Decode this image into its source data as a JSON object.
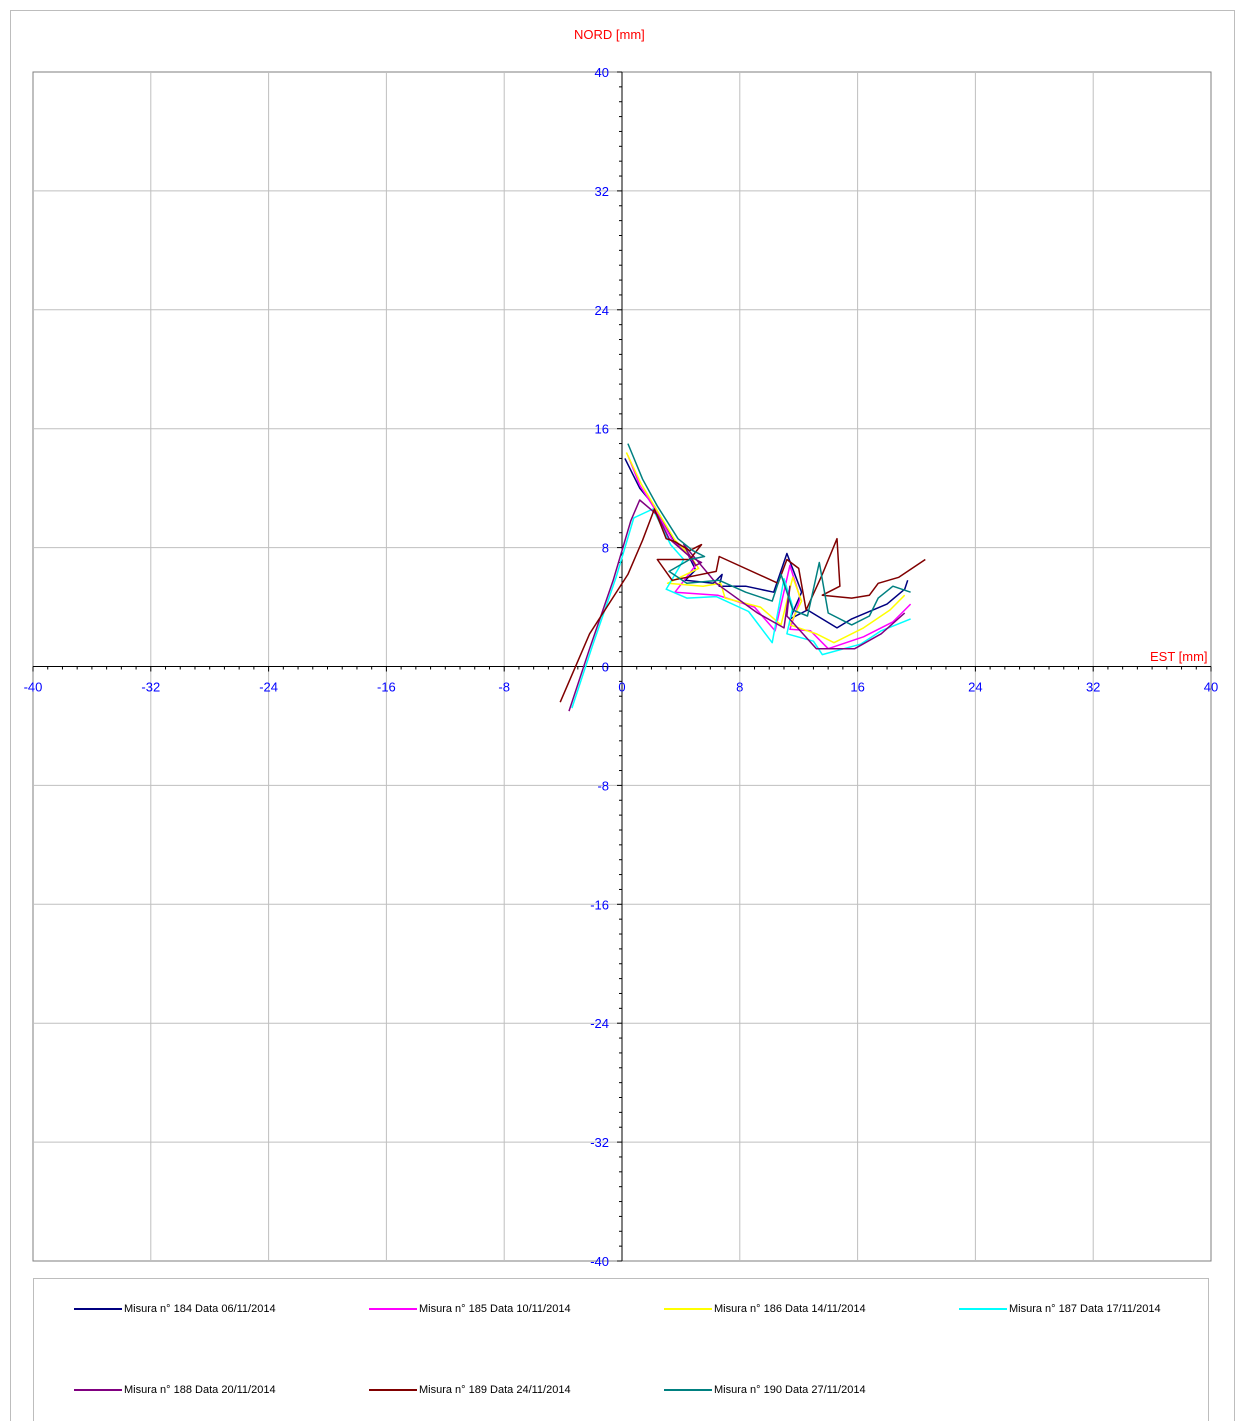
{
  "chart_data": {
    "type": "line",
    "xlabel": "EST [mm]",
    "ylabel": "NORD  [mm]",
    "xlim": [
      -40,
      40
    ],
    "ylim": [
      -40,
      40
    ],
    "x_ticks": [
      -40,
      -32,
      -24,
      -16,
      -8,
      0,
      8,
      16,
      24,
      32,
      40
    ],
    "y_ticks": [
      40,
      32,
      24,
      16,
      8,
      0,
      -8,
      -16,
      -24,
      -32,
      -40
    ],
    "grid": true,
    "legend_position": "bottom",
    "colors": {
      "tick_label": "#0000ff",
      "axis_title": "#ff0000",
      "grid": "#bfbfbf"
    },
    "series": [
      {
        "name": "Misura n° 184 Data 06/11/2014",
        "color": "#000080",
        "points": [
          [
            0.2,
            14
          ],
          [
            1.2,
            12
          ],
          [
            2.2,
            10.8
          ],
          [
            3.5,
            8.5
          ],
          [
            4.5,
            7.5
          ],
          [
            5,
            6.5
          ],
          [
            4.3,
            5.8
          ],
          [
            6.2,
            5.6
          ],
          [
            6.8,
            6.2
          ],
          [
            6.6,
            5.4
          ],
          [
            8.4,
            5.4
          ],
          [
            10.3,
            5
          ],
          [
            11.2,
            7.6
          ],
          [
            12.2,
            5
          ],
          [
            11.4,
            3.2
          ],
          [
            12.6,
            3.8
          ],
          [
            14.6,
            2.6
          ],
          [
            15.6,
            3.2
          ],
          [
            18,
            4.2
          ],
          [
            19.2,
            5.2
          ],
          [
            19.4,
            5.8
          ]
        ]
      },
      {
        "name": "Misura n° 185 Data 10/11/2014",
        "color": "#ff00ff",
        "points": [
          [
            0.4,
            14.2
          ],
          [
            1.2,
            12.2
          ],
          [
            2.1,
            10.8
          ],
          [
            3.5,
            8.4
          ],
          [
            4.5,
            7.5
          ],
          [
            5,
            6.8
          ],
          [
            3.6,
            5
          ],
          [
            6.5,
            4.8
          ],
          [
            9,
            4
          ],
          [
            10.4,
            2.4
          ],
          [
            11.4,
            6.8
          ],
          [
            12.1,
            4.6
          ],
          [
            11.4,
            2.5
          ],
          [
            12.8,
            2.4
          ],
          [
            14,
            1.2
          ],
          [
            16.4,
            2
          ],
          [
            18.4,
            3
          ],
          [
            19,
            3.6
          ],
          [
            19.6,
            4.2
          ]
        ]
      },
      {
        "name": "Misura n° 186 Data 14/11/2014",
        "color": "#ffff00",
        "points": [
          [
            0.3,
            14.4
          ],
          [
            1.3,
            12.3
          ],
          [
            2.2,
            10.8
          ],
          [
            3.6,
            8.5
          ],
          [
            4.6,
            7.5
          ],
          [
            5.2,
            6.6
          ],
          [
            3.1,
            5.6
          ],
          [
            5.5,
            5.4
          ],
          [
            6.7,
            5.6
          ],
          [
            7,
            4.6
          ],
          [
            9.4,
            4
          ],
          [
            10.8,
            2.8
          ],
          [
            11.6,
            6
          ],
          [
            12.2,
            4.4
          ],
          [
            11.4,
            2.8
          ],
          [
            13.2,
            2.2
          ],
          [
            14.4,
            1.6
          ],
          [
            16.4,
            2.6
          ],
          [
            18.2,
            3.8
          ],
          [
            19.2,
            4.8
          ]
        ]
      },
      {
        "name": "Misura n° 187 Data 17/11/2014",
        "color": "#00ffff",
        "points": [
          [
            -3.4,
            -2.8
          ],
          [
            -2,
            1.4
          ],
          [
            -0.4,
            6
          ],
          [
            0.8,
            10
          ],
          [
            2.1,
            10.6
          ],
          [
            3.3,
            8.2
          ],
          [
            4.2,
            7.2
          ],
          [
            3,
            5.2
          ],
          [
            4.4,
            4.6
          ],
          [
            6.4,
            4.7
          ],
          [
            8.6,
            3.7
          ],
          [
            10.2,
            1.6
          ],
          [
            11,
            5.9
          ],
          [
            11.6,
            4
          ],
          [
            11.2,
            2.2
          ],
          [
            13,
            1.7
          ],
          [
            13.6,
            0.8
          ],
          [
            16.2,
            1.5
          ],
          [
            17.6,
            2.4
          ],
          [
            19.6,
            3.2
          ]
        ]
      },
      {
        "name": "Misura n° 188 Data 20/11/2014",
        "color": "#800080",
        "points": [
          [
            -3.6,
            -3
          ],
          [
            -2.2,
            1.2
          ],
          [
            -0.6,
            5.8
          ],
          [
            0.6,
            9.8
          ],
          [
            1.2,
            11.2
          ],
          [
            2.4,
            10.2
          ],
          [
            3.2,
            8.6
          ],
          [
            4.6,
            7.4
          ],
          [
            5.4,
            7
          ],
          [
            5,
            6.8
          ],
          [
            4.4,
            7.8
          ],
          [
            4.2,
            8.2
          ],
          [
            6.4,
            5.6
          ],
          [
            9.2,
            3.6
          ],
          [
            11,
            2.6
          ],
          [
            11.4,
            5.4
          ],
          [
            11.2,
            3.4
          ],
          [
            13.2,
            1.2
          ],
          [
            15.8,
            1.2
          ],
          [
            17.6,
            2.2
          ],
          [
            19.2,
            3.6
          ]
        ]
      },
      {
        "name": "Misura n° 189 Data 24/11/2014",
        "color": "#800000",
        "points": [
          [
            -4.2,
            -2.4
          ],
          [
            -2.2,
            2.2
          ],
          [
            0.4,
            6.2
          ],
          [
            1.4,
            8.5
          ],
          [
            2.2,
            10.6
          ],
          [
            3,
            8.6
          ],
          [
            3.6,
            8.4
          ],
          [
            4.6,
            7.8
          ],
          [
            5.4,
            8.2
          ],
          [
            4.6,
            7.2
          ],
          [
            2.4,
            7.2
          ],
          [
            3.4,
            5.8
          ],
          [
            6.4,
            6.4
          ],
          [
            6.6,
            7.4
          ],
          [
            10.6,
            5.6
          ],
          [
            11.2,
            7.2
          ],
          [
            12,
            6.6
          ],
          [
            12.5,
            3.8
          ],
          [
            13.6,
            6.2
          ],
          [
            14.6,
            8.6
          ],
          [
            14.8,
            5.4
          ],
          [
            13.6,
            4.8
          ],
          [
            15.6,
            4.6
          ],
          [
            16.8,
            4.8
          ],
          [
            17.4,
            5.6
          ],
          [
            18.8,
            6
          ],
          [
            20.6,
            7.2
          ]
        ]
      },
      {
        "name": "Misura n° 190 Data 27/11/2014",
        "color": "#008080",
        "points": [
          [
            0.4,
            15
          ],
          [
            1.4,
            12.6
          ],
          [
            2.4,
            10.8
          ],
          [
            3.8,
            8.6
          ],
          [
            4.8,
            7.8
          ],
          [
            5.6,
            7.4
          ],
          [
            4.6,
            7.2
          ],
          [
            3.2,
            6.4
          ],
          [
            4.4,
            5.6
          ],
          [
            6.6,
            5.8
          ],
          [
            8.4,
            5
          ],
          [
            10.2,
            4.4
          ],
          [
            10.8,
            6.2
          ],
          [
            11.6,
            3.8
          ],
          [
            12.6,
            3.4
          ],
          [
            13.4,
            7
          ],
          [
            14,
            3.6
          ],
          [
            15.6,
            2.8
          ],
          [
            16.8,
            3.4
          ],
          [
            17.4,
            4.6
          ],
          [
            18.4,
            5.4
          ],
          [
            19.6,
            5
          ]
        ]
      }
    ]
  }
}
